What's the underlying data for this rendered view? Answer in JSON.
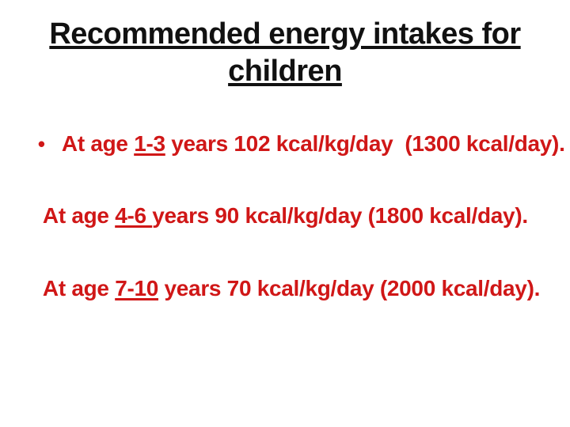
{
  "slide": {
    "background_color": "#ffffff",
    "title": {
      "color": "#111111",
      "lines": [
        "Recommended energy intakes for",
        "children"
      ]
    },
    "body": {
      "color": "#d01717",
      "bullet_glyph": "•",
      "items": [
        {
          "pre": "At age ",
          "range": "1-3",
          "post": " years 102 kcal/kg/day  (1300 kcal/day)."
        },
        {
          "pre": "At age ",
          "range": "4-6 ",
          "post": "years 90 kcal/kg/day (1800 kcal/day)."
        },
        {
          "pre": "At age ",
          "range": "7-10",
          "post": " years 70 kcal/kg/day (2000 kcal/day)."
        }
      ]
    }
  }
}
